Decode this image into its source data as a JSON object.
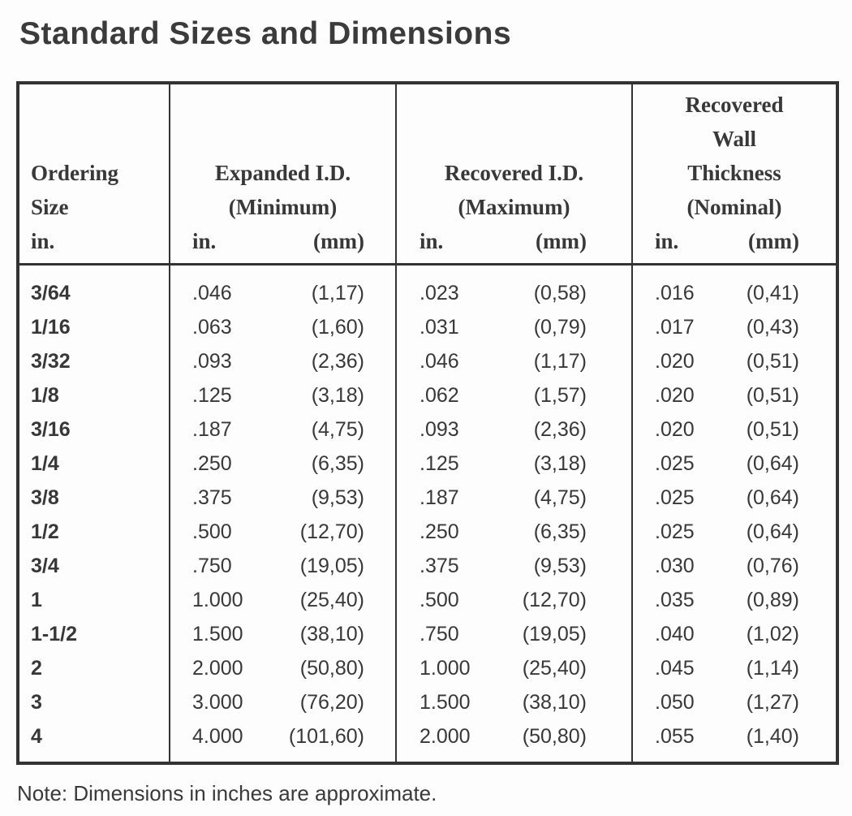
{
  "title": "Standard Sizes and Dimensions",
  "note": "Note: Dimensions in inches are approximate.",
  "colors": {
    "text": "#3a3a3a",
    "border": "#333333",
    "background": "#fdfdfd"
  },
  "table": {
    "header": {
      "col1_lines": [
        "Ordering",
        "Size",
        "in."
      ],
      "col2": {
        "line1": "Expanded I.D.",
        "line2": "(Minimum)",
        "unit_in": "in.",
        "unit_mm": "(mm)"
      },
      "col3": {
        "line1": "Recovered I.D.",
        "line2": "(Maximum)",
        "unit_in": "in.",
        "unit_mm": "(mm)"
      },
      "col4": {
        "line1": "Recovered",
        "line2": "Wall",
        "line3": "Thickness",
        "line4": "(Nominal)",
        "unit_in": "in.",
        "unit_mm": "(mm)"
      }
    },
    "rows": [
      {
        "size": "3/64",
        "expanded_in": ".046",
        "expanded_mm": "(1,17)",
        "recovered_in": ".023",
        "recovered_mm": "(0,58)",
        "wall_in": ".016",
        "wall_mm": "(0,41)"
      },
      {
        "size": "1/16",
        "expanded_in": ".063",
        "expanded_mm": "(1,60)",
        "recovered_in": ".031",
        "recovered_mm": "(0,79)",
        "wall_in": ".017",
        "wall_mm": "(0,43)"
      },
      {
        "size": "3/32",
        "expanded_in": ".093",
        "expanded_mm": "(2,36)",
        "recovered_in": ".046",
        "recovered_mm": "(1,17)",
        "wall_in": ".020",
        "wall_mm": "(0,51)"
      },
      {
        "size": "1/8",
        "expanded_in": ".125",
        "expanded_mm": "(3,18)",
        "recovered_in": ".062",
        "recovered_mm": "(1,57)",
        "wall_in": ".020",
        "wall_mm": "(0,51)"
      },
      {
        "size": "3/16",
        "expanded_in": ".187",
        "expanded_mm": "(4,75)",
        "recovered_in": ".093",
        "recovered_mm": "(2,36)",
        "wall_in": ".020",
        "wall_mm": "(0,51)"
      },
      {
        "size": "1/4",
        "expanded_in": ".250",
        "expanded_mm": "(6,35)",
        "recovered_in": ".125",
        "recovered_mm": "(3,18)",
        "wall_in": ".025",
        "wall_mm": "(0,64)"
      },
      {
        "size": "3/8",
        "expanded_in": ".375",
        "expanded_mm": "(9,53)",
        "recovered_in": ".187",
        "recovered_mm": "(4,75)",
        "wall_in": ".025",
        "wall_mm": "(0,64)"
      },
      {
        "size": "1/2",
        "expanded_in": ".500",
        "expanded_mm": "(12,70)",
        "recovered_in": ".250",
        "recovered_mm": "(6,35)",
        "wall_in": ".025",
        "wall_mm": "(0,64)"
      },
      {
        "size": "3/4",
        "expanded_in": ".750",
        "expanded_mm": "(19,05)",
        "recovered_in": ".375",
        "recovered_mm": "(9,53)",
        "wall_in": ".030",
        "wall_mm": "(0,76)"
      },
      {
        "size": "1",
        "expanded_in": "1.000",
        "expanded_mm": "(25,40)",
        "recovered_in": ".500",
        "recovered_mm": "(12,70)",
        "wall_in": ".035",
        "wall_mm": "(0,89)"
      },
      {
        "size": "1-1/2",
        "expanded_in": "1.500",
        "expanded_mm": "(38,10)",
        "recovered_in": ".750",
        "recovered_mm": "(19,05)",
        "wall_in": ".040",
        "wall_mm": "(1,02)"
      },
      {
        "size": "2",
        "expanded_in": "2.000",
        "expanded_mm": "(50,80)",
        "recovered_in": "1.000",
        "recovered_mm": "(25,40)",
        "wall_in": ".045",
        "wall_mm": "(1,14)"
      },
      {
        "size": "3",
        "expanded_in": "3.000",
        "expanded_mm": "(76,20)",
        "recovered_in": "1.500",
        "recovered_mm": "(38,10)",
        "wall_in": ".050",
        "wall_mm": "(1,27)"
      },
      {
        "size": "4",
        "expanded_in": "4.000",
        "expanded_mm": "(101,60)",
        "recovered_in": "2.000",
        "recovered_mm": "(50,80)",
        "wall_in": ".055",
        "wall_mm": "(1,40)"
      }
    ]
  }
}
